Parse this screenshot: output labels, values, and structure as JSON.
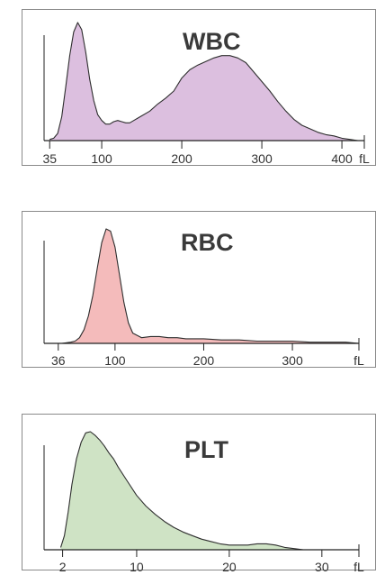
{
  "chart_data": [
    {
      "type": "area",
      "title": "WBC",
      "unit_label": "fL",
      "fill_color": "#dcbfdf",
      "stroke_color": "#2e2e2e",
      "xlim": [
        28,
        428
      ],
      "ylim": [
        0,
        1
      ],
      "x_ticks": [
        {
          "value": 35,
          "label": "35"
        },
        {
          "value": 100,
          "label": "100"
        },
        {
          "value": 200,
          "label": "200"
        },
        {
          "value": 300,
          "label": "300"
        },
        {
          "value": 400,
          "label": "400"
        }
      ],
      "x": [
        35,
        40,
        45,
        50,
        55,
        60,
        65,
        70,
        75,
        80,
        85,
        90,
        95,
        100,
        105,
        110,
        115,
        120,
        125,
        130,
        135,
        140,
        145,
        150,
        160,
        170,
        180,
        190,
        200,
        210,
        220,
        230,
        240,
        250,
        260,
        270,
        280,
        290,
        300,
        310,
        320,
        330,
        340,
        350,
        360,
        370,
        380,
        390,
        400,
        410,
        420
      ],
      "y": [
        0.01,
        0.02,
        0.06,
        0.2,
        0.45,
        0.72,
        0.92,
        1.0,
        0.94,
        0.75,
        0.52,
        0.34,
        0.22,
        0.17,
        0.14,
        0.14,
        0.16,
        0.17,
        0.16,
        0.15,
        0.15,
        0.17,
        0.19,
        0.21,
        0.25,
        0.31,
        0.36,
        0.42,
        0.53,
        0.6,
        0.64,
        0.67,
        0.7,
        0.72,
        0.72,
        0.7,
        0.66,
        0.58,
        0.5,
        0.42,
        0.33,
        0.25,
        0.18,
        0.13,
        0.1,
        0.07,
        0.05,
        0.04,
        0.02,
        0.01,
        0.0
      ]
    },
    {
      "type": "area",
      "title": "RBC",
      "unit_label": "fL",
      "fill_color": "#f4bbbb",
      "stroke_color": "#2e2e2e",
      "xlim": [
        20,
        375
      ],
      "ylim": [
        0,
        1
      ],
      "x_ticks": [
        {
          "value": 36,
          "label": "36"
        },
        {
          "value": 100,
          "label": "100"
        },
        {
          "value": 200,
          "label": "200"
        },
        {
          "value": 300,
          "label": "300"
        }
      ],
      "x": [
        20,
        40,
        50,
        55,
        60,
        65,
        70,
        75,
        80,
        85,
        90,
        95,
        100,
        105,
        110,
        115,
        120,
        130,
        140,
        150,
        160,
        170,
        180,
        200,
        220,
        240,
        260,
        280,
        300,
        320,
        340,
        360,
        375
      ],
      "y": [
        0.0,
        0.0,
        0.01,
        0.02,
        0.05,
        0.12,
        0.24,
        0.42,
        0.66,
        0.88,
        1.0,
        0.98,
        0.84,
        0.6,
        0.36,
        0.18,
        0.09,
        0.05,
        0.06,
        0.06,
        0.05,
        0.05,
        0.04,
        0.04,
        0.03,
        0.03,
        0.02,
        0.02,
        0.02,
        0.01,
        0.01,
        0.01,
        0.0
      ]
    },
    {
      "type": "area",
      "title": "PLT",
      "unit_label": "fL",
      "fill_color": "#cfe3c5",
      "stroke_color": "#2e2e2e",
      "xlim": [
        0,
        34
      ],
      "ylim": [
        0,
        1
      ],
      "x_ticks": [
        {
          "value": 2,
          "label": "2"
        },
        {
          "value": 10,
          "label": "10"
        },
        {
          "value": 20,
          "label": "20"
        },
        {
          "value": 30,
          "label": "30"
        }
      ],
      "x": [
        1.8,
        2.2,
        2.6,
        3.0,
        3.5,
        4.0,
        4.5,
        5.0,
        5.5,
        6.0,
        6.5,
        7.0,
        7.5,
        8.0,
        9.0,
        10.0,
        11.0,
        12.0,
        13.0,
        14.0,
        15.0,
        16.0,
        17.0,
        18.0,
        19.0,
        20.0,
        21.0,
        22.0,
        23.0,
        24.0,
        25.0,
        26.0,
        27.0,
        28.0,
        30.0,
        32.0
      ],
      "y": [
        0.02,
        0.12,
        0.32,
        0.55,
        0.77,
        0.91,
        0.99,
        1.0,
        0.97,
        0.93,
        0.88,
        0.82,
        0.77,
        0.7,
        0.58,
        0.46,
        0.37,
        0.3,
        0.24,
        0.19,
        0.15,
        0.12,
        0.09,
        0.07,
        0.05,
        0.04,
        0.04,
        0.04,
        0.05,
        0.05,
        0.04,
        0.02,
        0.01,
        0.0,
        0.0,
        0.0
      ]
    }
  ]
}
